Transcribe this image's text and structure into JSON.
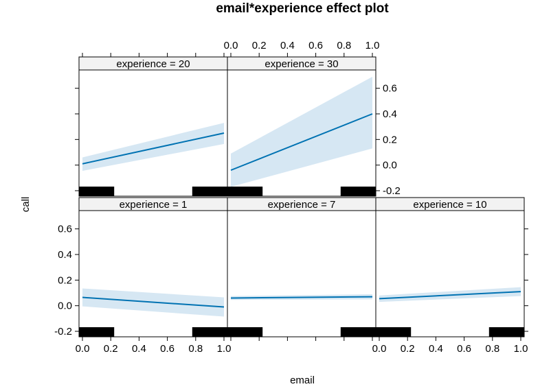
{
  "chart_data": {
    "type": "line",
    "title": "email*experience effect plot",
    "xlabel": "email",
    "ylabel": "call",
    "xlim": [
      0,
      1
    ],
    "ylim": [
      -0.2,
      0.7
    ],
    "x_ticks": [
      "0.0",
      "0.2",
      "0.4",
      "0.6",
      "0.8",
      "1.0"
    ],
    "y_ticks": [
      "-0.2",
      "0.0",
      "0.2",
      "0.4",
      "0.6"
    ],
    "line_color": "#0072B2",
    "band_color": "#d6e7f3",
    "rug_color": "#000000",
    "panels": [
      {
        "strip": "experience = 1",
        "fit": [
          0.065,
          -0.01
        ],
        "lower": [
          -0.005,
          -0.085
        ],
        "upper": [
          0.135,
          0.065
        ],
        "rug": [
          0,
          0.08,
          0.85,
          0.92
        ]
      },
      {
        "strip": "experience = 7",
        "fit": [
          0.06,
          0.07
        ],
        "lower": [
          0.045,
          0.05
        ],
        "upper": [
          0.075,
          0.09
        ],
        "rug": [
          0,
          0.08,
          0.85,
          0.92
        ]
      },
      {
        "strip": "experience = 10",
        "fit": [
          0.055,
          0.11
        ],
        "lower": [
          0.03,
          0.075
        ],
        "upper": [
          0.08,
          0.145
        ],
        "rug": [
          0,
          0.08,
          0.85,
          0.92
        ]
      },
      {
        "strip": "experience = 20",
        "fit": [
          0.01,
          0.25
        ],
        "lower": [
          -0.045,
          0.165
        ],
        "upper": [
          0.06,
          0.33
        ],
        "rug": [
          0,
          0.08,
          0.85,
          0.92
        ]
      },
      {
        "strip": "experience = 30",
        "fit": [
          -0.04,
          0.4
        ],
        "lower": [
          -0.17,
          0.13
        ],
        "upper": [
          0.09,
          0.69
        ],
        "rug": [
          0,
          0.08,
          0.85,
          0.92
        ]
      }
    ]
  }
}
